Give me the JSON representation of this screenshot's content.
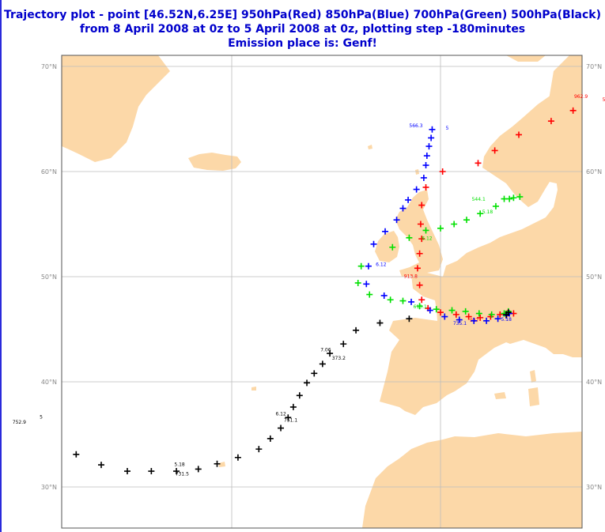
{
  "title": {
    "line1": "Trajectory plot - point [46.52N,6.25E] 950hPa(Red) 850hPa(Blue) 700hPa(Green) 500hPa(Black)",
    "line2": "from 8 April 2008 at 0z to 5 April 2008 at 0z, plotting step -180minutes",
    "line3": "Emission place is: Genf!"
  },
  "colors": {
    "land": "#fcd8a8",
    "sea": "#ffffff",
    "grid": "#bdbdbd",
    "red": "#ff0000",
    "blue": "#0000ff",
    "green": "#00e000",
    "black": "#000000",
    "title": "#0000cc"
  },
  "map": {
    "lat_labels": [
      "70°N",
      "60°N",
      "50°N",
      "40°N",
      "30°N"
    ],
    "lat_values": [
      70,
      60,
      50,
      40,
      30
    ],
    "lon_grid": [
      -20,
      0
    ]
  },
  "trajectories": [
    {
      "name": "950hPa",
      "color_key": "red",
      "points": [
        [
          14.3,
          66.5
        ],
        [
          12.7,
          65.8
        ],
        [
          10.6,
          64.8
        ],
        [
          7.5,
          63.5
        ],
        [
          5.2,
          62.0
        ],
        [
          3.6,
          60.8
        ],
        [
          0.2,
          60.0
        ],
        [
          -1.4,
          58.5
        ],
        [
          -1.8,
          56.8
        ],
        [
          -1.9,
          55.0
        ],
        [
          -1.8,
          53.6
        ],
        [
          -2.0,
          52.2
        ],
        [
          -2.2,
          50.8
        ],
        [
          -2.0,
          49.2
        ],
        [
          -1.8,
          47.8
        ],
        [
          -1.2,
          47.0
        ],
        [
          0.0,
          46.6
        ],
        [
          1.5,
          46.4
        ],
        [
          2.7,
          46.2
        ],
        [
          3.8,
          46.1
        ],
        [
          4.8,
          46.2
        ],
        [
          5.7,
          46.4
        ],
        [
          6.4,
          46.5
        ],
        [
          7.0,
          46.5
        ]
      ],
      "labels": [
        {
          "text": "962.9",
          "at": [
            12.8,
            67.0
          ]
        },
        {
          "text": "5",
          "at": [
            15.5,
            66.7
          ]
        },
        {
          "text": "913.8",
          "at": [
            -3.5,
            49.9
          ]
        },
        {
          "text": "927",
          "at": [
            2.8,
            45.7
          ]
        }
      ]
    },
    {
      "name": "850hPa",
      "color_key": "blue",
      "points": [
        [
          -0.8,
          64.0
        ],
        [
          -0.9,
          63.2
        ],
        [
          -1.1,
          62.4
        ],
        [
          -1.3,
          61.5
        ],
        [
          -1.4,
          60.6
        ],
        [
          -1.6,
          59.4
        ],
        [
          -2.3,
          58.3
        ],
        [
          -3.1,
          57.3
        ],
        [
          -3.6,
          56.5
        ],
        [
          -4.2,
          55.4
        ],
        [
          -5.3,
          54.3
        ],
        [
          -6.4,
          53.1
        ],
        [
          -6.9,
          51.0
        ],
        [
          -7.1,
          49.3
        ],
        [
          -5.4,
          48.2
        ],
        [
          -2.8,
          47.6
        ],
        [
          -1.0,
          46.8
        ],
        [
          0.4,
          46.2
        ],
        [
          1.8,
          45.9
        ],
        [
          3.2,
          45.8
        ],
        [
          4.4,
          45.8
        ],
        [
          5.5,
          46.0
        ],
        [
          6.3,
          46.3
        ],
        [
          6.6,
          46.5
        ]
      ],
      "labels": [
        {
          "text": "566.3",
          "at": [
            -3.0,
            64.2
          ]
        },
        {
          "text": "5",
          "at": [
            0.5,
            64.0
          ]
        },
        {
          "text": "6.12",
          "at": [
            -6.2,
            51.0
          ]
        },
        {
          "text": "735.1",
          "at": [
            1.2,
            45.4
          ]
        },
        {
          "text": "5.18",
          "at": [
            5.8,
            45.8
          ]
        }
      ]
    },
    {
      "name": "700hPa",
      "color_key": "green",
      "points": [
        [
          7.6,
          57.6
        ],
        [
          7.0,
          57.5
        ],
        [
          6.6,
          57.4
        ],
        [
          6.1,
          57.4
        ],
        [
          5.3,
          56.7
        ],
        [
          3.8,
          56.0
        ],
        [
          2.5,
          55.4
        ],
        [
          1.3,
          55.0
        ],
        [
          0.0,
          54.6
        ],
        [
          -1.4,
          54.4
        ],
        [
          -3.0,
          53.7
        ],
        [
          -4.6,
          52.8
        ],
        [
          -7.6,
          51.0
        ],
        [
          -7.9,
          49.4
        ],
        [
          -6.8,
          48.3
        ],
        [
          -4.8,
          47.8
        ],
        [
          -3.6,
          47.7
        ],
        [
          -2.0,
          47.2
        ],
        [
          -0.4,
          46.9
        ],
        [
          1.1,
          46.8
        ],
        [
          2.4,
          46.7
        ],
        [
          3.7,
          46.5
        ],
        [
          4.9,
          46.4
        ],
        [
          6.1,
          46.5
        ],
        [
          6.5,
          46.7
        ]
      ],
      "labels": [
        {
          "text": "544.1",
          "at": [
            3.0,
            57.2
          ]
        },
        {
          "text": "5.18",
          "at": [
            4.0,
            56.0
          ]
        },
        {
          "text": "6.12",
          "at": [
            -1.8,
            53.5
          ]
        },
        {
          "text": "610.1",
          "at": [
            -2.6,
            47.0
          ]
        }
      ]
    },
    {
      "name": "500hPa",
      "color_key": "black",
      "points": [
        [
          6.5,
          46.6
        ],
        [
          6.3,
          46.4
        ],
        [
          -3.0,
          46.0
        ],
        [
          -5.8,
          45.6
        ],
        [
          -8.1,
          44.9
        ],
        [
          -9.3,
          43.6
        ],
        [
          -10.6,
          42.7
        ],
        [
          -11.3,
          41.7
        ],
        [
          -12.1,
          40.8
        ],
        [
          -12.8,
          39.9
        ],
        [
          -13.5,
          38.7
        ],
        [
          -14.1,
          37.6
        ],
        [
          -14.6,
          36.6
        ],
        [
          -15.3,
          35.6
        ],
        [
          -16.3,
          34.6
        ],
        [
          -17.4,
          33.6
        ],
        [
          -19.4,
          32.8
        ],
        [
          -21.4,
          32.2
        ],
        [
          -23.2,
          31.7
        ],
        [
          -25.3,
          31.5
        ],
        [
          -27.7,
          31.5
        ],
        [
          -30.0,
          31.5
        ],
        [
          -32.5,
          32.1
        ],
        [
          -34.9,
          33.1
        ],
        [
          -37.3,
          34.6
        ],
        [
          -39.1,
          36.3
        ]
      ],
      "labels": [
        {
          "text": "7.06",
          "at": [
            -11.5,
            42.9
          ]
        },
        {
          "text": "373.2",
          "at": [
            -10.4,
            42.1
          ]
        },
        {
          "text": "6.12",
          "at": [
            -15.8,
            36.8
          ]
        },
        {
          "text": "751.1",
          "at": [
            -15.0,
            36.2
          ]
        },
        {
          "text": "5.18",
          "at": [
            -25.5,
            32.0
          ]
        },
        {
          "text": "731.5",
          "at": [
            -25.4,
            31.1
          ]
        },
        {
          "text": "752.9",
          "at": [
            -41.0,
            36.0
          ]
        },
        {
          "text": "5",
          "at": [
            -38.4,
            36.5
          ]
        }
      ]
    }
  ]
}
